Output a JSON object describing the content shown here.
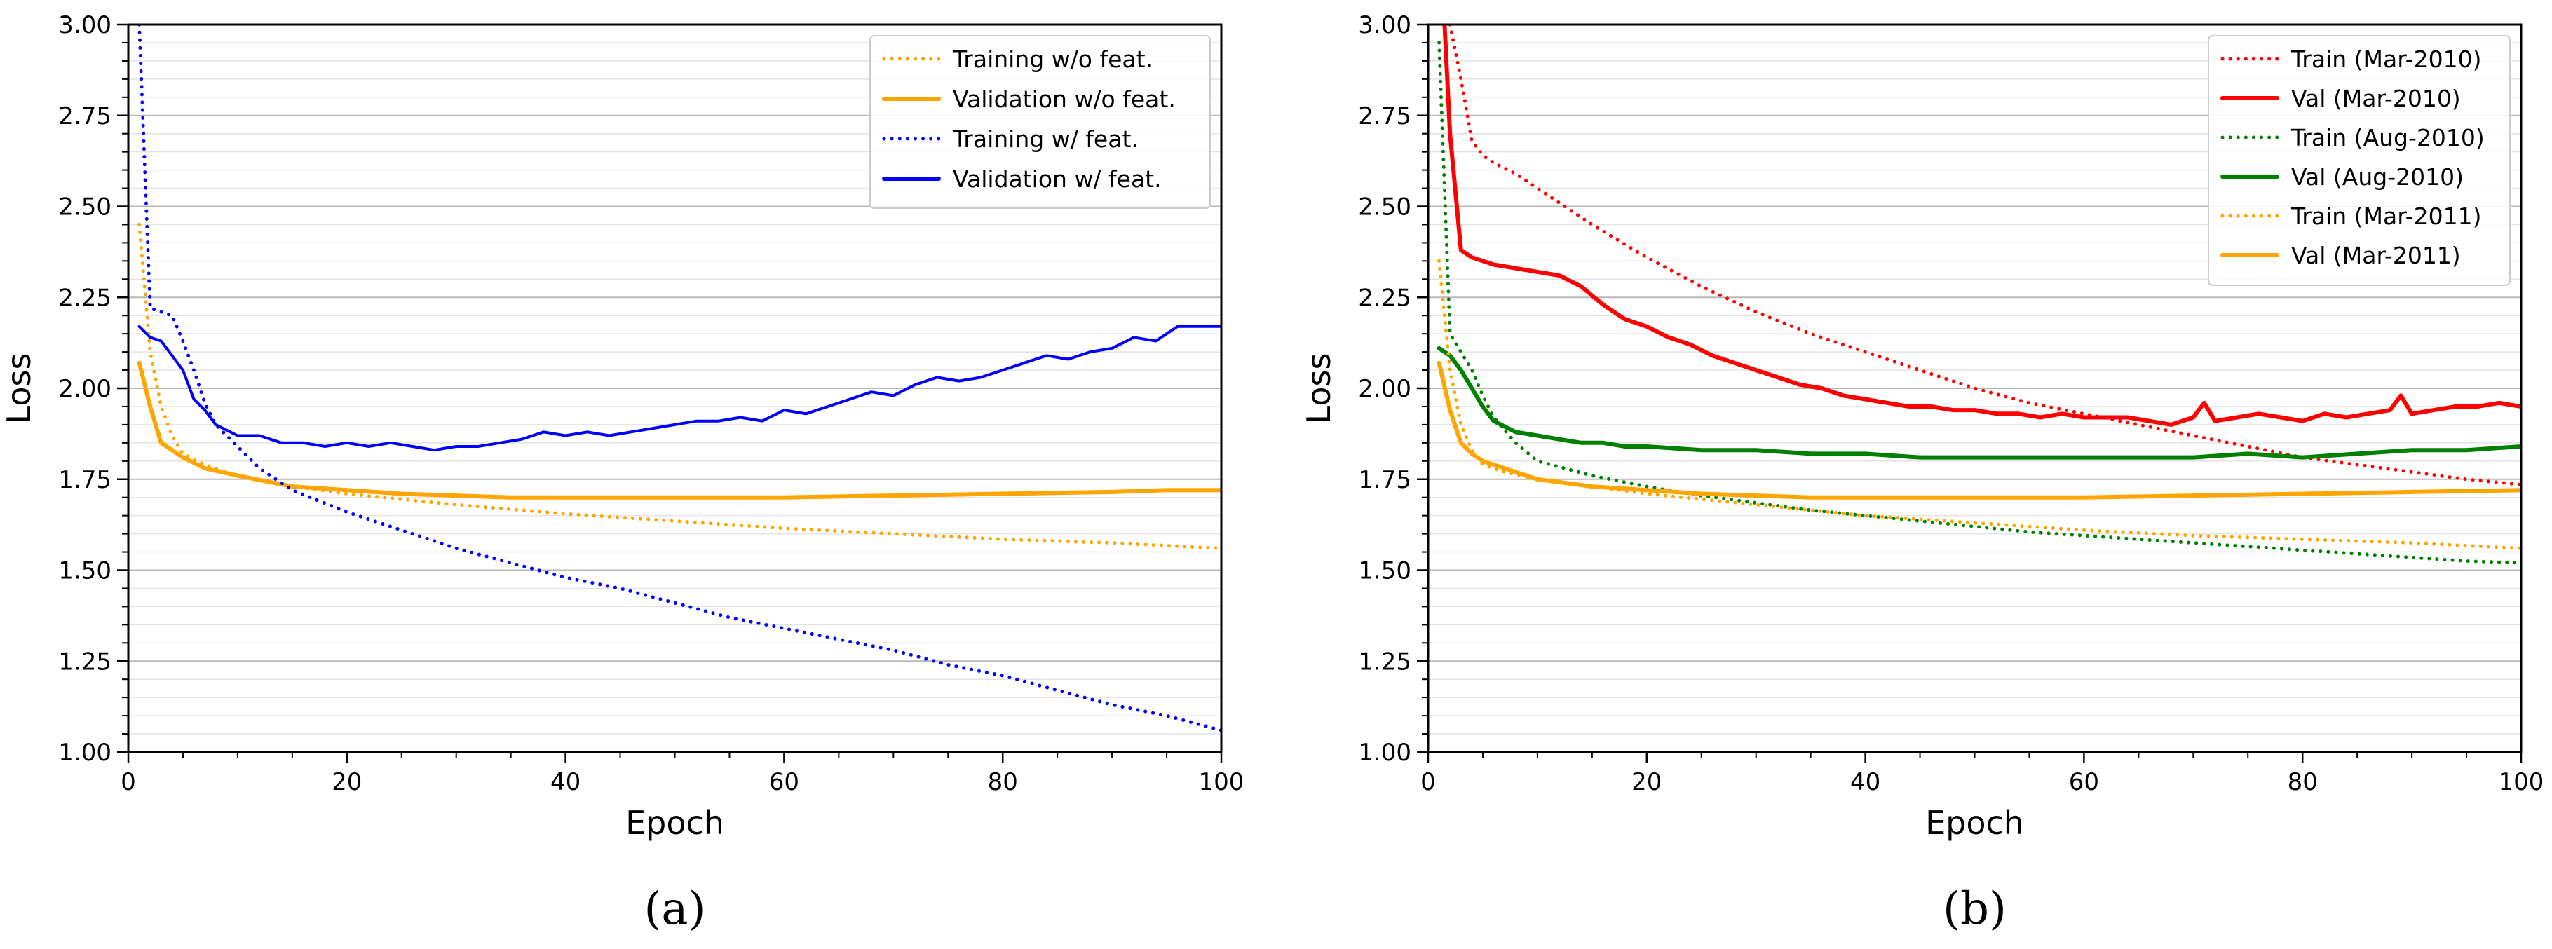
{
  "chart_data": [
    {
      "type": "line",
      "panel_label": "(a)",
      "xlabel": "Epoch",
      "ylabel": "Loss",
      "xlim": [
        0,
        100
      ],
      "ylim": [
        1.0,
        3.0
      ],
      "xticks": [
        0,
        20,
        40,
        60,
        80,
        100
      ],
      "yticks": [
        1.0,
        1.25,
        1.5,
        1.75,
        2.0,
        2.25,
        2.5,
        2.75,
        3.0
      ],
      "grid": "horizontal",
      "legend_position": "top-right",
      "series": [
        {
          "name": "Training w/o feat.",
          "color": "#ffa500",
          "style": "dotted",
          "x": [
            1,
            2,
            3,
            4,
            5,
            7,
            10,
            15,
            20,
            30,
            40,
            50,
            60,
            70,
            80,
            90,
            100
          ],
          "y": [
            2.45,
            2.1,
            1.95,
            1.87,
            1.82,
            1.79,
            1.76,
            1.73,
            1.71,
            1.68,
            1.655,
            1.635,
            1.615,
            1.6,
            1.585,
            1.575,
            1.56
          ]
        },
        {
          "name": "Validation w/o feat.",
          "color": "#ffa500",
          "style": "solid",
          "x": [
            1,
            2,
            3,
            4,
            5,
            7,
            10,
            15,
            20,
            25,
            30,
            35,
            40,
            50,
            60,
            70,
            80,
            90,
            95,
            100
          ],
          "y": [
            2.07,
            1.95,
            1.85,
            1.83,
            1.81,
            1.78,
            1.76,
            1.73,
            1.72,
            1.71,
            1.705,
            1.7,
            1.7,
            1.7,
            1.7,
            1.705,
            1.71,
            1.715,
            1.72,
            1.72
          ]
        },
        {
          "name": "Training w/ feat.",
          "color": "#0000ff",
          "style": "dotted",
          "x": [
            1,
            2,
            3,
            4,
            5,
            6,
            7,
            8,
            10,
            12,
            15,
            20,
            25,
            30,
            35,
            40,
            45,
            50,
            55,
            60,
            65,
            70,
            75,
            80,
            85,
            90,
            95,
            100
          ],
          "y": [
            3.0,
            2.22,
            2.21,
            2.2,
            2.13,
            2.05,
            1.96,
            1.9,
            1.84,
            1.78,
            1.72,
            1.66,
            1.61,
            1.56,
            1.52,
            1.48,
            1.45,
            1.41,
            1.37,
            1.34,
            1.31,
            1.28,
            1.24,
            1.21,
            1.17,
            1.13,
            1.1,
            1.06
          ]
        },
        {
          "name": "Validation w/ feat.",
          "color": "#0000ff",
          "style": "solid",
          "x": [
            1,
            2,
            3,
            4,
            5,
            6,
            7,
            8,
            10,
            12,
            14,
            16,
            18,
            20,
            22,
            24,
            26,
            28,
            30,
            32,
            34,
            36,
            38,
            40,
            42,
            44,
            46,
            48,
            50,
            52,
            54,
            56,
            58,
            60,
            62,
            64,
            66,
            68,
            70,
            72,
            74,
            76,
            78,
            80,
            82,
            84,
            86,
            88,
            90,
            92,
            94,
            96,
            98,
            100
          ],
          "y": [
            2.17,
            2.14,
            2.13,
            2.09,
            2.05,
            1.97,
            1.94,
            1.9,
            1.87,
            1.87,
            1.85,
            1.85,
            1.84,
            1.85,
            1.84,
            1.85,
            1.84,
            1.83,
            1.84,
            1.84,
            1.85,
            1.86,
            1.88,
            1.87,
            1.88,
            1.87,
            1.88,
            1.89,
            1.9,
            1.91,
            1.91,
            1.92,
            1.91,
            1.94,
            1.93,
            1.95,
            1.97,
            1.99,
            1.98,
            2.01,
            2.03,
            2.02,
            2.03,
            2.05,
            2.07,
            2.09,
            2.08,
            2.1,
            2.11,
            2.14,
            2.13,
            2.17,
            2.17,
            2.17
          ]
        }
      ]
    },
    {
      "type": "line",
      "panel_label": "(b)",
      "xlabel": "Epoch",
      "ylabel": "Loss",
      "xlim": [
        0,
        100
      ],
      "ylim": [
        1.0,
        3.0
      ],
      "xticks": [
        0,
        20,
        40,
        60,
        80,
        100
      ],
      "yticks": [
        1.0,
        1.25,
        1.5,
        1.75,
        2.0,
        2.25,
        2.5,
        2.75,
        3.0
      ],
      "grid": "horizontal",
      "legend_position": "top-right",
      "series": [
        {
          "name": "Train (Mar-2010)",
          "color": "#ff0000",
          "style": "dotted",
          "x": [
            2,
            3,
            4,
            5,
            6,
            8,
            10,
            15,
            20,
            25,
            30,
            35,
            40,
            45,
            50,
            55,
            60,
            65,
            70,
            75,
            80,
            85,
            90,
            95,
            100
          ],
          "y": [
            3.0,
            2.85,
            2.68,
            2.64,
            2.62,
            2.59,
            2.55,
            2.45,
            2.36,
            2.28,
            2.21,
            2.15,
            2.1,
            2.05,
            2.0,
            1.96,
            1.93,
            1.9,
            1.87,
            1.84,
            1.81,
            1.79,
            1.77,
            1.75,
            1.735
          ]
        },
        {
          "name": "Val (Mar-2010)",
          "color": "#ff0000",
          "style": "solid",
          "x": [
            1.5,
            2,
            3,
            4,
            5,
            6,
            8,
            10,
            12,
            14,
            16,
            18,
            20,
            22,
            24,
            26,
            28,
            30,
            32,
            34,
            36,
            38,
            40,
            42,
            44,
            46,
            48,
            50,
            52,
            54,
            56,
            58,
            60,
            62,
            64,
            66,
            68,
            70,
            71,
            72,
            74,
            76,
            78,
            80,
            82,
            84,
            86,
            88,
            89,
            90,
            92,
            94,
            96,
            98,
            100
          ],
          "y": [
            3.0,
            2.7,
            2.38,
            2.36,
            2.35,
            2.34,
            2.33,
            2.32,
            2.31,
            2.28,
            2.23,
            2.19,
            2.17,
            2.14,
            2.12,
            2.09,
            2.07,
            2.05,
            2.03,
            2.01,
            2.0,
            1.98,
            1.97,
            1.96,
            1.95,
            1.95,
            1.94,
            1.94,
            1.93,
            1.93,
            1.92,
            1.93,
            1.92,
            1.92,
            1.92,
            1.91,
            1.9,
            1.92,
            1.96,
            1.91,
            1.92,
            1.93,
            1.92,
            1.91,
            1.93,
            1.92,
            1.93,
            1.94,
            1.98,
            1.93,
            1.94,
            1.95,
            1.95,
            1.96,
            1.95
          ]
        },
        {
          "name": "Train (Aug-2010)",
          "color": "#008000",
          "style": "dotted",
          "x": [
            1,
            2,
            3,
            4,
            5,
            6,
            8,
            10,
            15,
            20,
            25,
            30,
            35,
            40,
            45,
            50,
            55,
            60,
            65,
            70,
            75,
            80,
            85,
            90,
            95,
            100
          ],
          "y": [
            2.95,
            2.15,
            2.1,
            2.05,
            1.98,
            1.92,
            1.85,
            1.8,
            1.76,
            1.73,
            1.705,
            1.685,
            1.665,
            1.65,
            1.635,
            1.62,
            1.605,
            1.595,
            1.585,
            1.575,
            1.565,
            1.555,
            1.545,
            1.535,
            1.525,
            1.52
          ]
        },
        {
          "name": "Val (Aug-2010)",
          "color": "#008000",
          "style": "solid",
          "x": [
            1,
            2,
            3,
            4,
            5,
            6,
            8,
            10,
            12,
            14,
            16,
            18,
            20,
            25,
            30,
            35,
            40,
            45,
            50,
            55,
            60,
            65,
            70,
            75,
            80,
            85,
            90,
            95,
            100
          ],
          "y": [
            2.11,
            2.09,
            2.05,
            2.0,
            1.95,
            1.91,
            1.88,
            1.87,
            1.86,
            1.85,
            1.85,
            1.84,
            1.84,
            1.83,
            1.83,
            1.82,
            1.82,
            1.81,
            1.81,
            1.81,
            1.81,
            1.81,
            1.81,
            1.82,
            1.81,
            1.82,
            1.83,
            1.83,
            1.84
          ]
        },
        {
          "name": "Train (Mar-2011)",
          "color": "#ffa500",
          "style": "dotted",
          "x": [
            1,
            2,
            3,
            4,
            5,
            7,
            10,
            15,
            20,
            30,
            40,
            50,
            60,
            70,
            80,
            90,
            100
          ],
          "y": [
            2.35,
            2.05,
            1.9,
            1.83,
            1.79,
            1.77,
            1.75,
            1.73,
            1.71,
            1.68,
            1.65,
            1.63,
            1.61,
            1.595,
            1.585,
            1.575,
            1.56
          ]
        },
        {
          "name": "Val (Mar-2011)",
          "color": "#ffa500",
          "style": "solid",
          "x": [
            1,
            2,
            3,
            4,
            5,
            7,
            10,
            15,
            20,
            25,
            30,
            35,
            40,
            50,
            60,
            70,
            80,
            90,
            100
          ],
          "y": [
            2.07,
            1.94,
            1.85,
            1.82,
            1.8,
            1.78,
            1.75,
            1.73,
            1.72,
            1.71,
            1.705,
            1.7,
            1.7,
            1.7,
            1.7,
            1.705,
            1.71,
            1.715,
            1.72
          ]
        }
      ]
    }
  ]
}
